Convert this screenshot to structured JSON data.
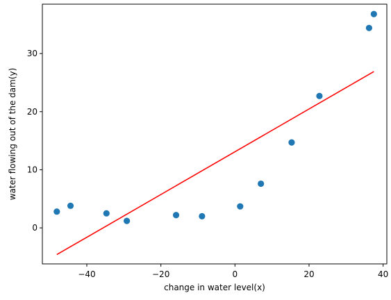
{
  "chart_data": {
    "type": "scatter",
    "title": "",
    "xlabel": "change in water level(x)",
    "ylabel": "water flowing out of the dam(y)",
    "xlim": [
      -52,
      41
    ],
    "ylim": [
      -6.2,
      38.5
    ],
    "xticks": [
      -40,
      -20,
      0,
      20,
      40
    ],
    "xtick_labels": [
      "−40",
      "−20",
      "0",
      "20",
      "40"
    ],
    "yticks": [
      0,
      10,
      20,
      30
    ],
    "ytick_labels": [
      "0",
      "10",
      "20",
      "30"
    ],
    "grid": false,
    "legend": "none",
    "series": [
      {
        "type": "scatter",
        "color": "#1f77b4",
        "x": [
          -48.1,
          -44.4,
          -34.7,
          -29.2,
          -15.9,
          -8.9,
          1.4,
          7.0,
          15.3,
          22.8,
          36.2,
          37.5
        ],
        "y": [
          2.8,
          3.8,
          2.5,
          1.2,
          2.2,
          2.0,
          3.7,
          7.6,
          14.7,
          22.7,
          34.4,
          36.8
        ]
      },
      {
        "type": "line",
        "color": "#ff0000",
        "x": [
          -48.1,
          37.5
        ],
        "y": [
          -4.6,
          26.9
        ]
      }
    ]
  }
}
